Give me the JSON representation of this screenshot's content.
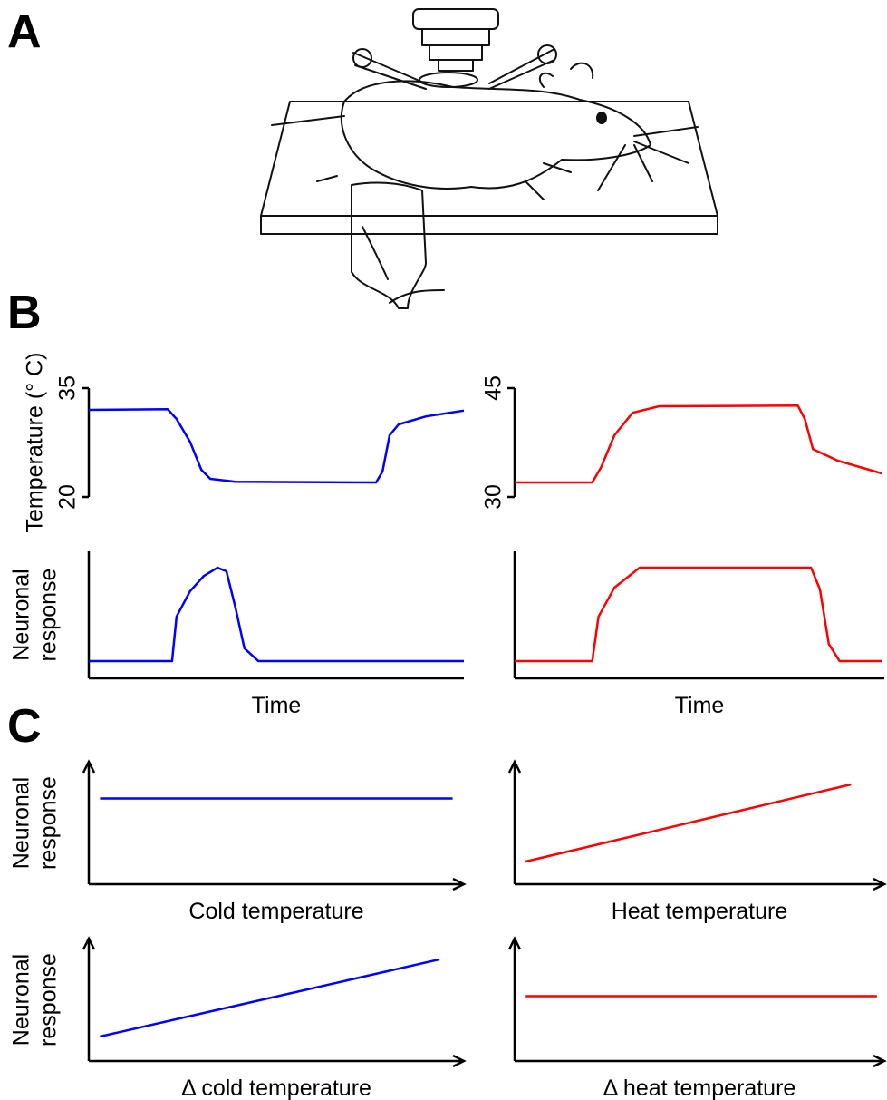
{
  "panel_labels": [
    "A",
    "B",
    "C"
  ],
  "chart_data": [
    {
      "type": "line",
      "ylabel": [
        "Temperature (° C)"
      ],
      "xlim": [
        0,
        100
      ],
      "ylim": [
        20,
        35
      ],
      "yticks": [
        20,
        35
      ],
      "x_axis": false,
      "arrows": false,
      "series": [
        {
          "color": "#0000ff",
          "x": [
            0,
            21,
            23.4,
            27,
            30,
            32.4,
            39,
            76.6,
            78.3,
            80.2,
            82.6,
            89.9,
            100
          ],
          "values": [
            32,
            32.1,
            30.75,
            27.6,
            23.75,
            22.5,
            22.1,
            22,
            23.5,
            28.5,
            30,
            31.1,
            31.9
          ]
        }
      ]
    },
    {
      "type": "line",
      "xlim": [
        0,
        100
      ],
      "ylim": [
        30,
        45
      ],
      "yticks": [
        30,
        45
      ],
      "x_axis": false,
      "arrows": false,
      "series": [
        {
          "color": "#ff0000",
          "x": [
            0,
            21,
            23.4,
            27,
            31.9,
            39.1,
            76.6,
            78.5,
            80.7,
            87.4,
            99.3
          ],
          "values": [
            32,
            32,
            34.1,
            38.5,
            41.6,
            42.5,
            42.6,
            40.75,
            36.6,
            35,
            33.25
          ]
        }
      ]
    },
    {
      "type": "line",
      "ylabel": [
        "Neuronal",
        "response"
      ],
      "xlabel": "Time",
      "xlim": [
        0,
        100
      ],
      "ylim": [
        0,
        100
      ],
      "x_axis": true,
      "arrows": false,
      "series": [
        {
          "color": "#0000ff",
          "x": [
            0,
            22.2,
            23.4,
            27,
            30.7,
            34.3,
            36.7,
            39.1,
            41.5,
            45.2,
            100
          ],
          "values": [
            13.6,
            13.6,
            48.6,
            68.6,
            80.7,
            87.1,
            84.3,
            55.7,
            23.6,
            13.6,
            13.6
          ]
        }
      ]
    },
    {
      "type": "line",
      "xlabel": "Time",
      "xlim": [
        0,
        100
      ],
      "ylim": [
        0,
        100
      ],
      "x_axis": true,
      "arrows": false,
      "series": [
        {
          "color": "#ff0000",
          "x": [
            0,
            21,
            22.7,
            27,
            33.8,
            80.2,
            82.6,
            85,
            87.9,
            99.3
          ],
          "values": [
            13.6,
            13.6,
            48.6,
            71.4,
            87.1,
            87.1,
            70,
            27,
            13.6,
            13.6
          ]
        }
      ]
    },
    {
      "type": "line",
      "ylabel": [
        "Neuronal",
        "response"
      ],
      "xlabel": "Cold temperature",
      "xlim": [
        0,
        100
      ],
      "ylim": [
        0,
        100
      ],
      "x_axis": true,
      "arrows": true,
      "series": [
        {
          "color": "#0000ff",
          "x": [
            3,
            97
          ],
          "values": [
            70,
            70
          ]
        }
      ]
    },
    {
      "type": "line",
      "xlabel": "Heat temperature",
      "xlim": [
        0,
        100
      ],
      "ylim": [
        0,
        100
      ],
      "x_axis": true,
      "arrows": true,
      "series": [
        {
          "color": "#ff0000",
          "x": [
            3,
            91
          ],
          "values": [
            18.5,
            81.5
          ]
        }
      ]
    },
    {
      "type": "line",
      "ylabel": [
        "Neuronal",
        "response"
      ],
      "xlabel": "Δ cold temperature",
      "xlim": [
        0,
        100
      ],
      "ylim": [
        0,
        100
      ],
      "x_axis": true,
      "arrows": true,
      "series": [
        {
          "color": "#0000ff",
          "x": [
            3,
            93.5
          ],
          "values": [
            20,
            83
          ]
        }
      ]
    },
    {
      "type": "line",
      "xlabel": "Δ heat temperature",
      "xlim": [
        0,
        100
      ],
      "ylim": [
        0,
        100
      ],
      "x_axis": true,
      "arrows": true,
      "series": [
        {
          "color": "#ff0000",
          "x": [
            3,
            98
          ],
          "values": [
            53,
            53
          ]
        }
      ]
    }
  ]
}
